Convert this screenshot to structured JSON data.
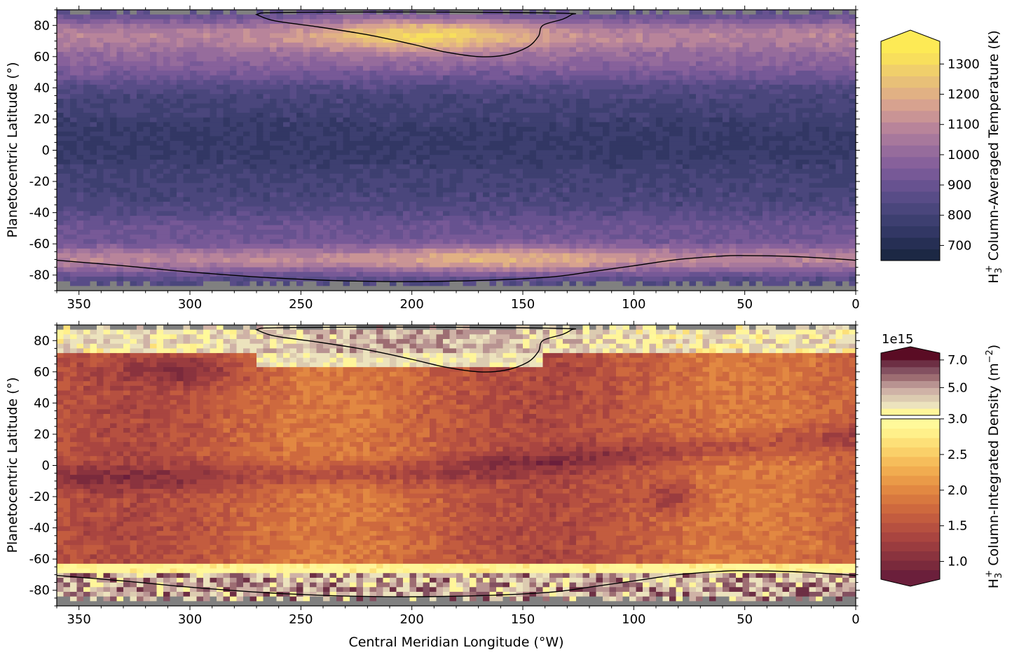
{
  "chart_data": [
    {
      "type": "heatmap",
      "name": "temperature-map",
      "title": "",
      "xlabel": "",
      "ylabel": "Planetocentric Latitude (°)",
      "xlim": [
        360,
        0
      ],
      "ylim": [
        -90,
        90
      ],
      "xticks": [
        350,
        300,
        250,
        200,
        150,
        100,
        50,
        0
      ],
      "xtick_labels": [
        "350",
        "300",
        "250",
        "200",
        "150",
        "100",
        "50",
        "0"
      ],
      "yticks": [
        80,
        60,
        40,
        20,
        0,
        -20,
        -40,
        -60,
        -80
      ],
      "ytick_labels": [
        "80",
        "60",
        "40",
        "20",
        "0",
        "-20",
        "-40",
        "-60",
        "-80"
      ],
      "colorbar": {
        "label_prefix": "H",
        "label_sub": "3",
        "label_sup": "+",
        "label_rest": " Column-Averaged Temperature (K)",
        "range": [
          650,
          1375
        ],
        "ticks": [
          700,
          800,
          900,
          1000,
          1100,
          1200,
          1300
        ],
        "tick_labels": [
          "700",
          "800",
          "900",
          "1000",
          "1100",
          "1200",
          "1300"
        ],
        "colors": [
          "#1c2844",
          "#262f54",
          "#323764",
          "#3d3f70",
          "#4a467c",
          "#584c87",
          "#675290",
          "#775997",
          "#87619b",
          "#966c9c",
          "#a7789c",
          "#b8849a",
          "#c99495",
          "#d7a28f",
          "#e1b184",
          "#e8c078",
          "#f0cf6b",
          "#f8df5c",
          "#fdea55"
        ],
        "extend": "max"
      },
      "contours": [
        {
          "name": "north-oval",
          "points": [
            [
              270,
              87
            ],
            [
              262,
              83
            ],
            [
              242,
              79
            ],
            [
              220,
              74
            ],
            [
              200,
              68
            ],
            [
              185,
              63
            ],
            [
              170,
              60
            ],
            [
              158,
              61
            ],
            [
              148,
              66
            ],
            [
              143,
              73
            ],
            [
              141,
              80
            ],
            [
              132,
              84
            ],
            [
              128,
              87
            ],
            [
              128,
              87.6
            ],
            [
              150,
              88.2
            ],
            [
              200,
              88.6
            ],
            [
              250,
              88.4
            ],
            [
              268,
              88
            ]
          ]
        },
        {
          "name": "south-oval",
          "points": [
            [
              360,
              -70.5
            ],
            [
              330,
              -74
            ],
            [
              300,
              -78
            ],
            [
              260,
              -82
            ],
            [
              220,
              -84
            ],
            [
              180,
              -83.8
            ],
            [
              140,
              -81.5
            ],
            [
              120,
              -78
            ],
            [
              100,
              -74
            ],
            [
              80,
              -70
            ],
            [
              60,
              -67.8
            ],
            [
              50,
              -67.5
            ],
            [
              30,
              -68
            ],
            [
              10,
              -69.5
            ],
            [
              0,
              -70.5
            ]
          ]
        }
      ]
    },
    {
      "type": "heatmap",
      "name": "density-map",
      "title": "",
      "xlabel": "Central Meridian Longitude (°W)",
      "ylabel": "Planetocentric Latitude (°)",
      "xlim": [
        360,
        0
      ],
      "ylim": [
        -90,
        90
      ],
      "xticks": [
        350,
        300,
        250,
        200,
        150,
        100,
        50,
        0
      ],
      "xtick_labels": [
        "350",
        "300",
        "250",
        "200",
        "150",
        "100",
        "50",
        "0"
      ],
      "yticks": [
        80,
        60,
        40,
        20,
        0,
        -20,
        -40,
        -60,
        -80
      ],
      "ytick_labels": [
        "80",
        "60",
        "40",
        "20",
        "0",
        "-20",
        "-40",
        "-60",
        "-80"
      ],
      "colorbar_upper": {
        "offset_text": "1e15",
        "range": [
          3.0,
          7.5
        ],
        "ticks": [
          5.0,
          7.0
        ],
        "tick_labels": [
          "5.0",
          "7.0"
        ],
        "colors": [
          "#fff59a",
          "#ece3bd",
          "#dccbb0",
          "#cfb2a6",
          "#b89391",
          "#9d6d72",
          "#835060",
          "#6d2f44",
          "#5a0c24"
        ],
        "extend": "max"
      },
      "colorbar_lower": {
        "range": [
          0.75,
          3.0
        ],
        "ticks": [
          1.0,
          1.5,
          2.0,
          2.5,
          3.0
        ],
        "tick_labels": [
          "1.0",
          "1.5",
          "2.0",
          "2.5",
          "3.0"
        ],
        "colors": [
          "#6b1f3b",
          "#7a2a3c",
          "#8a333e",
          "#9a3c3f",
          "#a94540",
          "#b65040",
          "#c35c3f",
          "#ce693e",
          "#d8783f",
          "#e28842",
          "#ea9a48",
          "#f1ac50",
          "#f6bd5b",
          "#fad069",
          "#fde078",
          "#fff08a",
          "#fff99a"
        ],
        "extend": "min"
      },
      "colorbar_label": {
        "label_prefix": "H",
        "label_sub": "3",
        "label_sup": "+",
        "label_rest": " Column-Integrated Density (m",
        "label_unit_sup": "−2",
        "label_close": ")"
      },
      "contours": [
        {
          "name": "north-oval",
          "points": [
            [
              270,
              87
            ],
            [
              262,
              83
            ],
            [
              242,
              79
            ],
            [
              220,
              74
            ],
            [
              200,
              68
            ],
            [
              185,
              63
            ],
            [
              170,
              60
            ],
            [
              158,
              61
            ],
            [
              148,
              66
            ],
            [
              143,
              73
            ],
            [
              141,
              80
            ],
            [
              132,
              84
            ],
            [
              128,
              87
            ],
            [
              128,
              87.6
            ],
            [
              150,
              88.2
            ],
            [
              200,
              88.6
            ],
            [
              250,
              88.4
            ],
            [
              268,
              88
            ]
          ]
        },
        {
          "name": "south-oval",
          "points": [
            [
              360,
              -70.5
            ],
            [
              330,
              -74
            ],
            [
              300,
              -78
            ],
            [
              260,
              -82
            ],
            [
              220,
              -84
            ],
            [
              180,
              -83.8
            ],
            [
              140,
              -81.5
            ],
            [
              120,
              -78
            ],
            [
              100,
              -74
            ],
            [
              80,
              -70
            ],
            [
              60,
              -67.8
            ],
            [
              50,
              -67.5
            ],
            [
              30,
              -68
            ],
            [
              10,
              -69.5
            ],
            [
              0,
              -70.5
            ]
          ]
        }
      ]
    }
  ]
}
